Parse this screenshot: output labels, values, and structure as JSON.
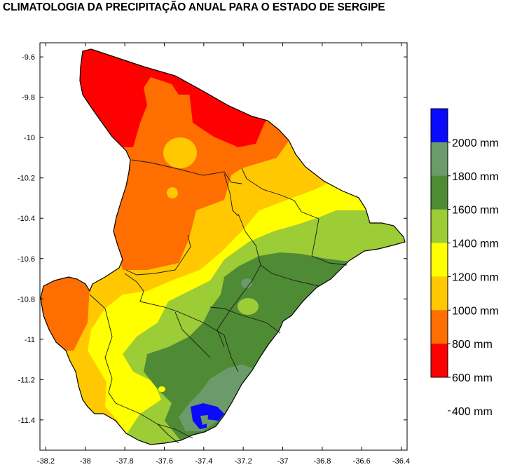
{
  "title": "CLIMATOLOGIA DA PRECIPITAÇÃO ANUAL PARA O ESTADO DE SERGIPE",
  "map": {
    "x_ticks": [
      "-38.2",
      "-38",
      "-37.8",
      "-37.6",
      "-37.4",
      "-37.2",
      "-37",
      "-36.8",
      "-36.6",
      "-36.4"
    ],
    "y_ticks": [
      "-9.6",
      "-9.8",
      "-10",
      "-10.2",
      "-10.4",
      "-10.6",
      "-10.8",
      "-11",
      "-11.2",
      "-11.4"
    ],
    "lon_range": [
      -38.23,
      -36.37
    ],
    "lat_range": [
      -11.55,
      -9.53
    ]
  },
  "legend": {
    "labels": [
      "2000 mm",
      "1800 mm",
      "1600 mm",
      "1400 mm",
      "1200 mm",
      "1000 mm",
      "800 mm",
      "600 mm",
      "400 mm"
    ],
    "colors": [
      "#0a0aff",
      "#6b9a6b",
      "#4f8a34",
      "#9ccc36",
      "#ffff00",
      "#ffc800",
      "#ff6e00",
      "#ff0000"
    ]
  },
  "palette": {
    "red": "#ff0000",
    "dark_orange": "#ff6e00",
    "orange": "#ffc800",
    "yellow": "#ffff00",
    "light_green": "#9ccc36",
    "green": "#4f8a34",
    "grey_green": "#6b9a6b",
    "blue": "#0a0aff"
  }
}
